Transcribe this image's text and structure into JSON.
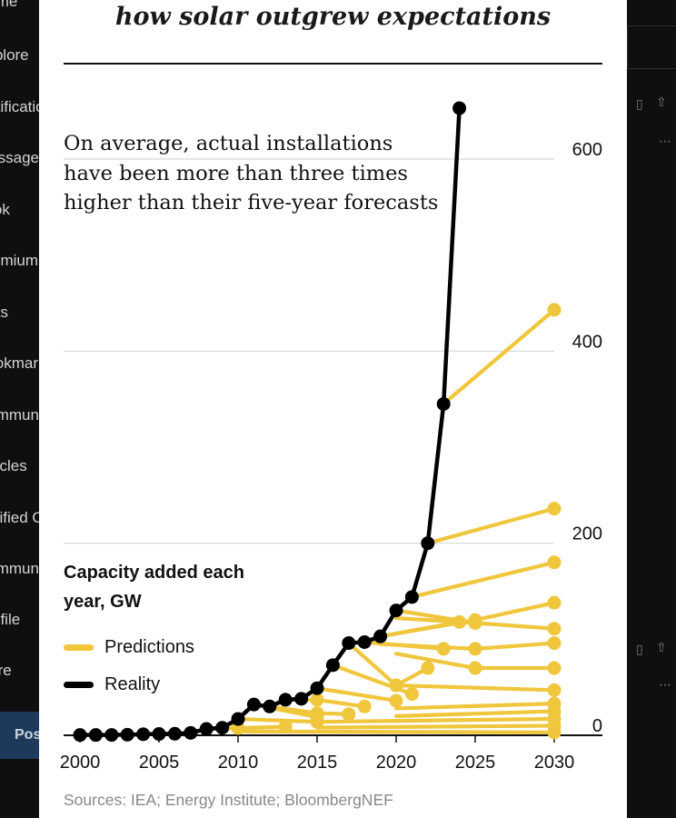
{
  "sidebar": {
    "items": [
      {
        "label": "Home"
      },
      {
        "label": "Explore"
      },
      {
        "label": "Notifications"
      },
      {
        "label": "Messages"
      },
      {
        "label": "Grok"
      },
      {
        "label": "Premium"
      },
      {
        "label": "Lists"
      },
      {
        "label": "Bookmarks"
      },
      {
        "label": "Communities"
      },
      {
        "label": "Articles"
      },
      {
        "label": "Verified Orgs"
      },
      {
        "label": "Communities"
      },
      {
        "label": "Profile"
      },
      {
        "label": "More"
      }
    ],
    "post_label": "Post"
  },
  "right_strip": {
    "icons": [
      "bookmark-icon",
      "share-icon",
      "more-icon",
      "bookmark-icon",
      "share-icon",
      "more-icon"
    ]
  },
  "card": {
    "title": "how solar outgrew expectations",
    "annotation": "On average, actual installations have been more than three times higher than their five-year forecasts",
    "legend_title": "Capacity added each year, GW",
    "legend": [
      {
        "name": "Predictions",
        "color": "#f0c63c"
      },
      {
        "name": "Reality",
        "color": "#000000"
      }
    ],
    "source": "Sources: IEA; Energy Institute; BloombergNEF"
  },
  "chart_data": {
    "type": "line",
    "xlabel": "",
    "ylabel": "",
    "xlim": [
      2000,
      2030
    ],
    "ylim": [
      0,
      600
    ],
    "x_ticks": [
      2000,
      2005,
      2010,
      2015,
      2020,
      2025,
      2030
    ],
    "y_ticks": [
      0,
      200,
      400,
      600
    ],
    "grid": "horizontal",
    "colors": {
      "reality": "#000000",
      "predictions": "#f0c63c",
      "grid": "#d7d7d7"
    },
    "series": [
      {
        "name": "Reality",
        "x": [
          2000,
          2001,
          2002,
          2003,
          2004,
          2005,
          2006,
          2007,
          2008,
          2009,
          2010,
          2011,
          2012,
          2013,
          2014,
          2015,
          2016,
          2017,
          2018,
          2019,
          2020,
          2021,
          2022,
          2023,
          2024
        ],
        "values": [
          0.3,
          0.3,
          0.4,
          0.6,
          1.1,
          1.4,
          1.6,
          2.5,
          6.6,
          7.8,
          17,
          32,
          30,
          37,
          38,
          49,
          73,
          96,
          97,
          103,
          130,
          144,
          200,
          345,
          653
        ]
      }
    ],
    "predictions": [
      {
        "x": [
          2008,
          2010,
          2013
        ],
        "values": [
          6.6,
          7.5,
          9.0
        ]
      },
      {
        "x": [
          2010,
          2015
        ],
        "values": [
          17,
          14
        ]
      },
      {
        "x": [
          2011,
          2015
        ],
        "values": [
          32,
          19
        ]
      },
      {
        "x": [
          2012,
          2015,
          2017
        ],
        "values": [
          30,
          23,
          22
        ]
      },
      {
        "x": [
          2013,
          2015,
          2018
        ],
        "values": [
          37,
          37,
          30
        ]
      },
      {
        "x": [
          2015,
          2020
        ],
        "values": [
          49,
          36
        ]
      },
      {
        "x": [
          2016,
          2021
        ],
        "values": [
          73,
          43
        ]
      },
      {
        "x": [
          2017,
          2020,
          2022
        ],
        "values": [
          96,
          52,
          70
        ]
      },
      {
        "x": [
          2018,
          2023
        ],
        "values": [
          97,
          90
        ]
      },
      {
        "x": [
          2019,
          2024
        ],
        "values": [
          103,
          118
        ]
      },
      {
        "x": [
          2020,
          2025
        ],
        "values": [
          130,
          117
        ]
      },
      {
        "x": [
          2021,
          2030
        ],
        "values": [
          144,
          180
        ]
      },
      {
        "x": [
          2022,
          2030
        ],
        "values": [
          200,
          236
        ]
      },
      {
        "x": [
          2023,
          2030
        ],
        "values": [
          345,
          443
        ]
      },
      {
        "x": [
          2019,
          2025,
          2030
        ],
        "values": [
          95,
          90,
          96
        ]
      },
      {
        "x": [
          2019,
          2025,
          2030
        ],
        "values": [
          103,
          120,
          138
        ]
      },
      {
        "x": [
          2020,
          2025,
          2030
        ],
        "values": [
          85,
          70,
          70
        ]
      },
      {
        "x": [
          2020,
          2025,
          2030
        ],
        "values": [
          122,
          117,
          111
        ]
      },
      {
        "x": [
          2020,
          2030
        ],
        "values": [
          52,
          47
        ]
      },
      {
        "x": [
          2020,
          2030
        ],
        "values": [
          28,
          33
        ]
      },
      {
        "x": [
          2020,
          2030
        ],
        "values": [
          20,
          25
        ]
      },
      {
        "x": [
          2015,
          2030
        ],
        "values": [
          14,
          17
        ]
      },
      {
        "x": [
          2015,
          2030
        ],
        "values": [
          8,
          10
        ]
      },
      {
        "x": [
          2010,
          2030
        ],
        "values": [
          4,
          3
        ]
      }
    ]
  }
}
